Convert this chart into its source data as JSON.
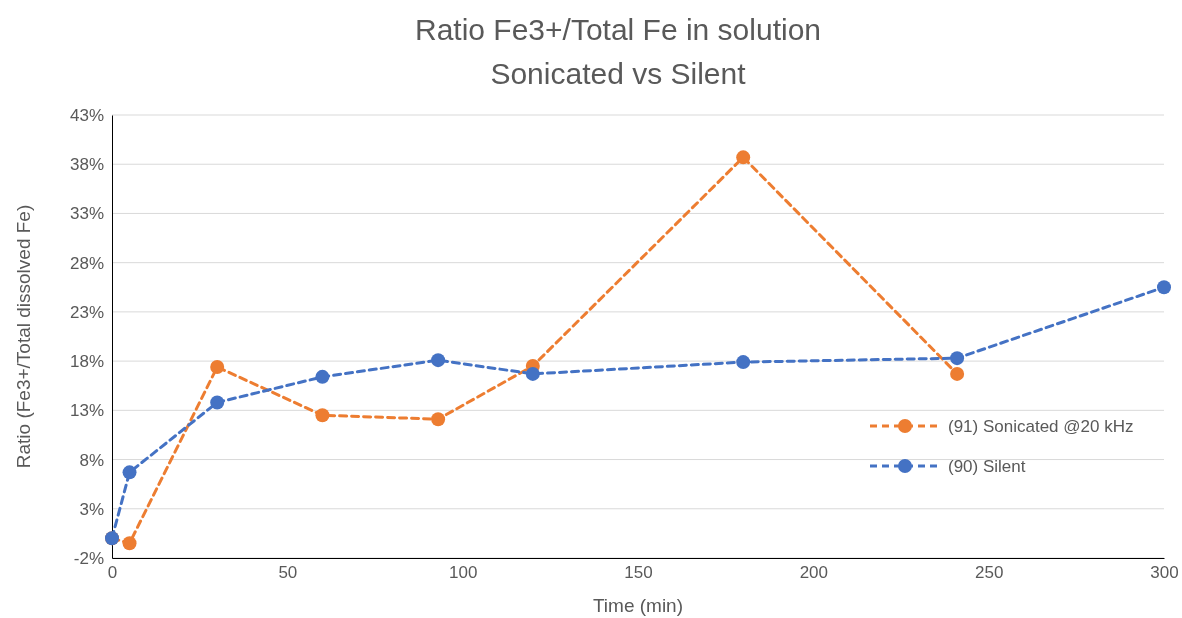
{
  "chart_data": {
    "type": "line",
    "title": "Ratio Fe3+/Total Fe in solution",
    "subtitle": "Sonicated vs Silent",
    "xlabel": "Time (min)",
    "ylabel": "Ratio (Fe3+/Total dissolved Fe)",
    "xlim": [
      0,
      300
    ],
    "xticks": [
      0,
      50,
      100,
      150,
      200,
      250,
      300
    ],
    "ylim": [
      -2,
      43
    ],
    "yticks": [
      {
        "value": -2,
        "label": "-2%"
      },
      {
        "value": 3,
        "label": "3%"
      },
      {
        "value": 8,
        "label": "8%"
      },
      {
        "value": 13,
        "label": "13%"
      },
      {
        "value": 18,
        "label": "18%"
      },
      {
        "value": 23,
        "label": "23%"
      },
      {
        "value": 28,
        "label": "28%"
      },
      {
        "value": 33,
        "label": "33%"
      },
      {
        "value": 38,
        "label": "38%"
      },
      {
        "value": 43,
        "label": "43%"
      }
    ],
    "grid": "y",
    "legend": "right",
    "marker": "circle",
    "line_style": "dashed",
    "series": [
      {
        "name": "(91) Sonicated @20 kHz",
        "color": "#ed7d31",
        "x": [
          0,
          5,
          30,
          60,
          93,
          120,
          180,
          241
        ],
        "values": [
          0,
          -0.5,
          17.4,
          12.5,
          12.1,
          17.5,
          38.7,
          16.7
        ]
      },
      {
        "name": "(90) Silent",
        "color": "#4472c4",
        "x": [
          0,
          5,
          30,
          60,
          93,
          120,
          180,
          241,
          300
        ],
        "values": [
          0,
          6.7,
          13.8,
          16.4,
          18.1,
          16.7,
          17.9,
          18.3,
          25.5
        ]
      }
    ]
  }
}
